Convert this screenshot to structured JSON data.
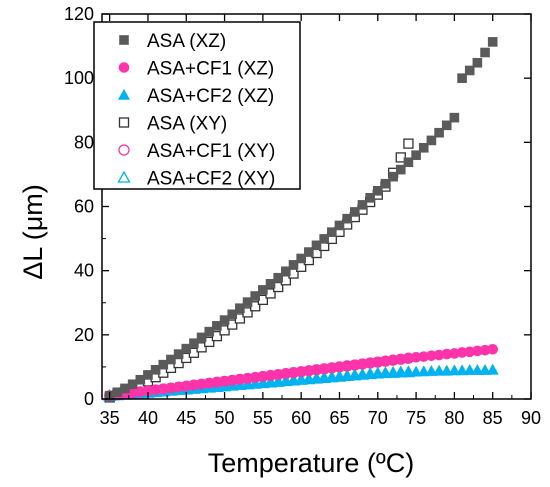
{
  "chart_data": {
    "type": "scatter",
    "xlabel": "Temperature (ºC)",
    "ylabel": "ΔL (μm)",
    "xlim": [
      34,
      90
    ],
    "ylim": [
      0,
      120
    ],
    "x_ticks": [
      35,
      40,
      45,
      50,
      55,
      60,
      65,
      70,
      75,
      80,
      85,
      90
    ],
    "y_ticks": [
      0,
      20,
      40,
      60,
      80,
      100,
      120
    ],
    "legend_position": "top-left",
    "x": [
      35,
      36,
      37,
      38,
      39,
      40,
      41,
      42,
      43,
      44,
      45,
      46,
      47,
      48,
      49,
      50,
      51,
      52,
      53,
      54,
      55,
      56,
      57,
      58,
      59,
      60,
      61,
      62,
      63,
      64,
      65,
      66,
      67,
      68,
      69,
      70,
      71,
      72,
      73,
      74,
      75,
      76,
      77,
      78,
      79,
      80,
      81,
      82,
      83,
      84,
      85
    ],
    "series": [
      {
        "name": "ASA (XZ)",
        "marker": "square",
        "filled": true,
        "color": "#5a5a5a",
        "values": [
          1.0,
          2.1,
          3.3,
          4.6,
          6.0,
          7.5,
          9.1,
          10.7,
          12.3,
          14.0,
          15.7,
          17.4,
          19.2,
          21.0,
          22.8,
          24.6,
          26.4,
          28.3,
          30.2,
          32.1,
          34.0,
          35.9,
          37.8,
          39.8,
          41.8,
          43.8,
          45.8,
          47.9,
          49.9,
          52.0,
          54.1,
          56.2,
          58.3,
          60.5,
          62.7,
          64.9,
          67.1,
          69.3,
          71.5,
          73.8,
          76.0,
          78.3,
          80.6,
          83.0,
          85.3,
          87.7,
          100.0,
          102.4,
          104.8,
          108.0,
          111.3
        ]
      },
      {
        "name": "ASA+CF1 (XZ)",
        "marker": "circle",
        "filled": true,
        "color": "#ff33aa",
        "values": [
          1.0,
          1.3,
          1.6,
          1.9,
          2.2,
          2.5,
          2.8,
          3.1,
          3.4,
          3.7,
          4.0,
          4.3,
          4.6,
          4.9,
          5.2,
          5.5,
          5.8,
          6.1,
          6.4,
          6.7,
          7.0,
          7.3,
          7.6,
          7.9,
          8.2,
          8.5,
          8.8,
          9.1,
          9.4,
          9.7,
          10.0,
          10.3,
          10.6,
          10.9,
          11.2,
          11.5,
          11.8,
          12.1,
          12.4,
          12.7,
          13.0,
          13.2,
          13.5,
          13.7,
          14.0,
          14.2,
          14.5,
          14.7,
          15.0,
          15.2,
          15.5
        ]
      },
      {
        "name": "ASA+CF2 (XZ)",
        "marker": "triangle",
        "filled": true,
        "color": "#00b2f0",
        "values": [
          1.0,
          1.2,
          1.4,
          1.6,
          1.8,
          2.0,
          2.2,
          2.4,
          2.6,
          2.8,
          3.0,
          3.2,
          3.4,
          3.6,
          3.8,
          4.0,
          4.2,
          4.4,
          4.6,
          4.8,
          5.0,
          5.2,
          5.4,
          5.6,
          5.8,
          6.0,
          6.2,
          6.4,
          6.6,
          6.8,
          7.0,
          7.2,
          7.4,
          7.6,
          7.8,
          8.0,
          8.1,
          8.2,
          8.3,
          8.4,
          8.5,
          8.6,
          8.7,
          8.8,
          8.8,
          8.9,
          8.9,
          9.0,
          9.0,
          9.0,
          9.1
        ]
      },
      {
        "name": "ASA (XY)",
        "marker": "square",
        "filled": false,
        "color": "#333333",
        "x": [
          35,
          36,
          37,
          38,
          39,
          40,
          41,
          42,
          43,
          44,
          45,
          46,
          47,
          48,
          49,
          50,
          51,
          52,
          53,
          54,
          55,
          56,
          57,
          58,
          59,
          60,
          61,
          62,
          63,
          64,
          65,
          66,
          67,
          68,
          69,
          70,
          71,
          72,
          73,
          74
        ],
        "values": [
          0.5,
          1.3,
          2.2,
          3.2,
          4.3,
          5.5,
          6.8,
          8.2,
          9.7,
          11.2,
          12.8,
          14.4,
          16.1,
          17.8,
          19.6,
          21.4,
          23.2,
          25.1,
          27.0,
          28.9,
          30.9,
          32.9,
          34.9,
          37.0,
          39.1,
          41.2,
          43.3,
          45.5,
          47.7,
          49.9,
          52.1,
          54.4,
          56.7,
          59.0,
          61.4,
          63.7,
          66.2,
          70.5,
          75.3,
          79.6
        ]
      },
      {
        "name": "ASA+CF1 (XY)",
        "marker": "circle",
        "filled": false,
        "color": "#ff33aa",
        "x": [
          35,
          36,
          37,
          38,
          39,
          40,
          41,
          42,
          43,
          44,
          45,
          46,
          47,
          48,
          49,
          50,
          51,
          52,
          53,
          54,
          55,
          56,
          57,
          58,
          59,
          60,
          61,
          62,
          63,
          64,
          65,
          66,
          67,
          68,
          69,
          70,
          71,
          72,
          73,
          74
        ],
        "values": [
          1.0,
          1.3,
          1.6,
          1.9,
          2.2,
          2.5,
          2.8,
          3.1,
          3.4,
          3.7,
          4.0,
          4.3,
          4.6,
          4.9,
          5.2,
          5.5,
          5.8,
          6.1,
          6.4,
          6.7,
          7.0,
          7.3,
          7.6,
          7.9,
          8.2,
          8.5,
          8.8,
          9.1,
          9.4,
          9.7,
          10.0,
          10.3,
          10.6,
          10.9,
          11.2,
          11.5,
          11.8,
          12.1,
          12.4,
          12.7
        ]
      },
      {
        "name": "ASA+CF2 (XY)",
        "marker": "triangle",
        "filled": false,
        "color": "#00b2f0",
        "x": [
          35,
          36,
          37,
          38,
          39,
          40,
          41,
          42,
          43,
          44,
          45,
          46,
          47,
          48,
          49,
          50,
          51,
          52,
          53,
          54,
          55,
          56,
          57,
          58,
          59,
          60,
          61,
          62,
          63,
          64,
          65,
          66,
          67,
          68,
          69,
          70,
          71,
          72,
          73,
          74
        ],
        "values": [
          1.0,
          1.2,
          1.4,
          1.6,
          1.8,
          2.0,
          2.2,
          2.4,
          2.6,
          2.8,
          3.0,
          3.2,
          3.4,
          3.6,
          3.8,
          4.0,
          4.2,
          4.4,
          4.6,
          4.8,
          5.0,
          5.2,
          5.4,
          5.6,
          5.8,
          6.0,
          6.2,
          6.4,
          6.6,
          6.8,
          7.0,
          7.2,
          7.4,
          7.6,
          7.8,
          8.0,
          8.1,
          8.2,
          8.3,
          8.4
        ]
      }
    ]
  }
}
